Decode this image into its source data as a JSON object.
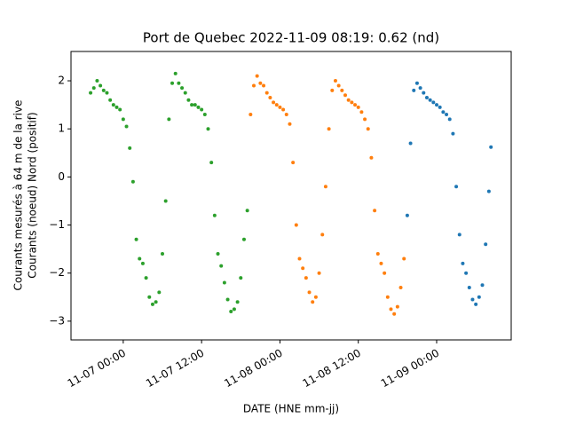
{
  "chart_data": {
    "type": "scatter",
    "title": "Port de Quebec 2022-11-09 08:19: 0.62 (nd)",
    "xlabel": "DATE (HNE mm-jj)",
    "ylabel": [
      "Courants mesurés à 64 m de la rive",
      "Courants (noeud) Nord (positif)"
    ],
    "xlim": [
      "11-06 16:00",
      "11-09 11:25"
    ],
    "xticks": [
      "11-07 00:00",
      "11-07 12:00",
      "11-08 00:00",
      "11-08 12:00",
      "11-09 00:00"
    ],
    "ylim": [
      -3.39,
      2.61
    ],
    "yticks": [
      {
        "value": -3,
        "label": "−3"
      },
      {
        "value": -2,
        "label": "−2"
      },
      {
        "value": -1,
        "label": "−1"
      },
      0,
      1,
      2
    ],
    "series": [
      {
        "color": "#2ca02c",
        "x": [
          "11-06 19:00",
          "11-06 19:30",
          "11-06 20:00",
          "11-06 20:30",
          "11-06 21:00",
          "11-06 21:30",
          "11-06 22:00",
          "11-06 22:30",
          "11-06 23:00",
          "11-06 23:30",
          "11-07 00:00",
          "11-07 00:30",
          "11-07 01:00",
          "11-07 01:30",
          "11-07 02:00",
          "11-07 02:30",
          "11-07 03:00",
          "11-07 03:30",
          "11-07 04:00",
          "11-07 04:30",
          "11-07 05:00",
          "11-07 05:30",
          "11-07 06:00",
          "11-07 06:30",
          "11-07 07:00",
          "11-07 07:30",
          "11-07 08:00",
          "11-07 08:30",
          "11-07 09:00",
          "11-07 09:30",
          "11-07 10:00",
          "11-07 10:30",
          "11-07 11:00",
          "11-07 11:30",
          "11-07 12:00",
          "11-07 12:30",
          "11-07 13:00",
          "11-07 13:30",
          "11-07 14:00",
          "11-07 14:30",
          "11-07 15:00",
          "11-07 15:30",
          "11-07 16:00",
          "11-07 16:30",
          "11-07 17:00",
          "11-07 17:30",
          "11-07 18:00",
          "11-07 18:30",
          "11-07 19:00"
        ],
        "values": [
          1.75,
          1.85,
          2.0,
          1.9,
          1.8,
          1.75,
          1.6,
          1.5,
          1.45,
          1.4,
          1.2,
          1.05,
          0.6,
          -0.1,
          -1.3,
          -1.7,
          -1.8,
          -2.1,
          -2.5,
          -2.65,
          -2.6,
          -2.4,
          -1.6,
          -0.5,
          1.2,
          1.95,
          2.15,
          1.95,
          1.85,
          1.75,
          1.6,
          1.5,
          1.5,
          1.45,
          1.4,
          1.3,
          1.0,
          0.3,
          -0.8,
          -1.6,
          -1.85,
          -2.2,
          -2.55,
          -2.8,
          -2.75,
          -2.6,
          -2.1,
          -1.3,
          -0.7
        ]
      },
      {
        "color": "#ff7f0e",
        "x": [
          "11-07 19:30",
          "11-07 20:00",
          "11-07 20:30",
          "11-07 21:00",
          "11-07 21:30",
          "11-07 22:00",
          "11-07 22:30",
          "11-07 23:00",
          "11-07 23:30",
          "11-08 00:00",
          "11-08 00:30",
          "11-08 01:00",
          "11-08 01:30",
          "11-08 02:00",
          "11-08 02:30",
          "11-08 03:00",
          "11-08 03:30",
          "11-08 04:00",
          "11-08 04:30",
          "11-08 05:00",
          "11-08 05:30",
          "11-08 06:00",
          "11-08 06:30",
          "11-08 07:00",
          "11-08 07:30",
          "11-08 08:00",
          "11-08 08:30",
          "11-08 09:00",
          "11-08 09:30",
          "11-08 10:00",
          "11-08 10:30",
          "11-08 11:00",
          "11-08 11:30",
          "11-08 12:00",
          "11-08 12:30",
          "11-08 13:00",
          "11-08 13:30",
          "11-08 14:00",
          "11-08 14:30",
          "11-08 15:00",
          "11-08 15:30",
          "11-08 16:00",
          "11-08 16:30",
          "11-08 17:00",
          "11-08 17:30",
          "11-08 18:00",
          "11-08 18:30",
          "11-08 19:00"
        ],
        "values": [
          1.3,
          1.9,
          2.1,
          1.95,
          1.9,
          1.75,
          1.65,
          1.55,
          1.5,
          1.45,
          1.4,
          1.3,
          1.1,
          0.3,
          -1.0,
          -1.7,
          -1.9,
          -2.1,
          -2.4,
          -2.6,
          -2.5,
          -2.0,
          -1.2,
          -0.2,
          1.0,
          1.8,
          2.0,
          1.9,
          1.8,
          1.7,
          1.6,
          1.55,
          1.5,
          1.45,
          1.35,
          1.2,
          1.0,
          0.4,
          -0.7,
          -1.6,
          -1.8,
          -2.0,
          -2.5,
          -2.75,
          -2.85,
          -2.7,
          -2.3,
          -1.7
        ]
      },
      {
        "color": "#1f77b4",
        "x": [
          "11-08 19:30",
          "11-08 20:00",
          "11-08 20:30",
          "11-08 21:00",
          "11-08 21:30",
          "11-08 22:00",
          "11-08 22:30",
          "11-08 23:00",
          "11-08 23:30",
          "11-09 00:00",
          "11-09 00:30",
          "11-09 01:00",
          "11-09 01:30",
          "11-09 02:00",
          "11-09 02:30",
          "11-09 03:00",
          "11-09 03:30",
          "11-09 04:00",
          "11-09 04:30",
          "11-09 05:00",
          "11-09 05:30",
          "11-09 06:00",
          "11-09 06:30",
          "11-09 07:00",
          "11-09 07:30",
          "11-09 08:00",
          "11-09 08:19"
        ],
        "values": [
          -0.8,
          0.7,
          1.8,
          1.95,
          1.85,
          1.75,
          1.65,
          1.6,
          1.55,
          1.5,
          1.45,
          1.35,
          1.3,
          1.2,
          0.9,
          -0.2,
          -1.2,
          -1.8,
          -2.0,
          -2.3,
          -2.55,
          -2.65,
          -2.5,
          -2.25,
          -1.4,
          -0.3,
          0.62
        ]
      }
    ]
  }
}
